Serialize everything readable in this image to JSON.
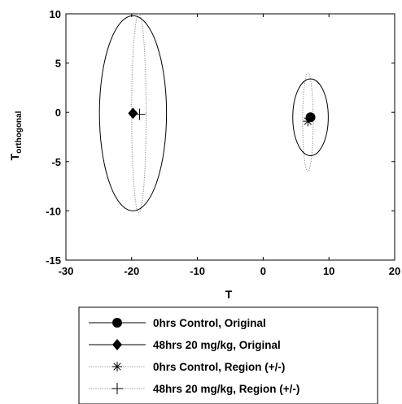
{
  "chart_data": {
    "type": "scatter",
    "title": "",
    "xlabel": "T",
    "ylabel_main": "T",
    "ylabel_sub": "orthogonal",
    "xlim": [
      -30,
      20
    ],
    "ylim": [
      -15,
      10
    ],
    "x_ticks": [
      -30,
      -20,
      -10,
      0,
      10,
      20
    ],
    "y_ticks": [
      10,
      5,
      0,
      -5,
      -10,
      -15
    ],
    "grid": false,
    "legend_position": "bottom",
    "series": [
      {
        "name": "0hrs Control, Original",
        "marker": "filled-circle",
        "line": "solid",
        "point": {
          "x": 7.2,
          "y": -0.5
        },
        "ellipse": {
          "cx": 7.2,
          "cy": -0.5,
          "rx": 2.7,
          "ry": 3.9
        }
      },
      {
        "name": "48hrs 20 mg/kg, Original",
        "marker": "filled-diamond",
        "line": "solid",
        "point": {
          "x": -19.8,
          "y": -0.1
        },
        "ellipse": {
          "cx": -19.8,
          "cy": -0.1,
          "rx": 5.1,
          "ry": 9.9
        }
      },
      {
        "name": "0hrs Control, Region (+/-)",
        "marker": "asterisk",
        "line": "dotted",
        "point": {
          "x": 6.8,
          "y": -0.9
        },
        "ellipse": {
          "cx": 6.8,
          "cy": -1.0,
          "rx": 0.8,
          "ry": 5.0
        }
      },
      {
        "name": "48hrs 20 mg/kg, Region (+/-)",
        "marker": "plus",
        "line": "dotted",
        "point": {
          "x": -18.8,
          "y": -0.2
        },
        "ellipse": {
          "cx": -18.9,
          "cy": -0.1,
          "rx": 1.1,
          "ry": 10.1
        }
      }
    ]
  }
}
